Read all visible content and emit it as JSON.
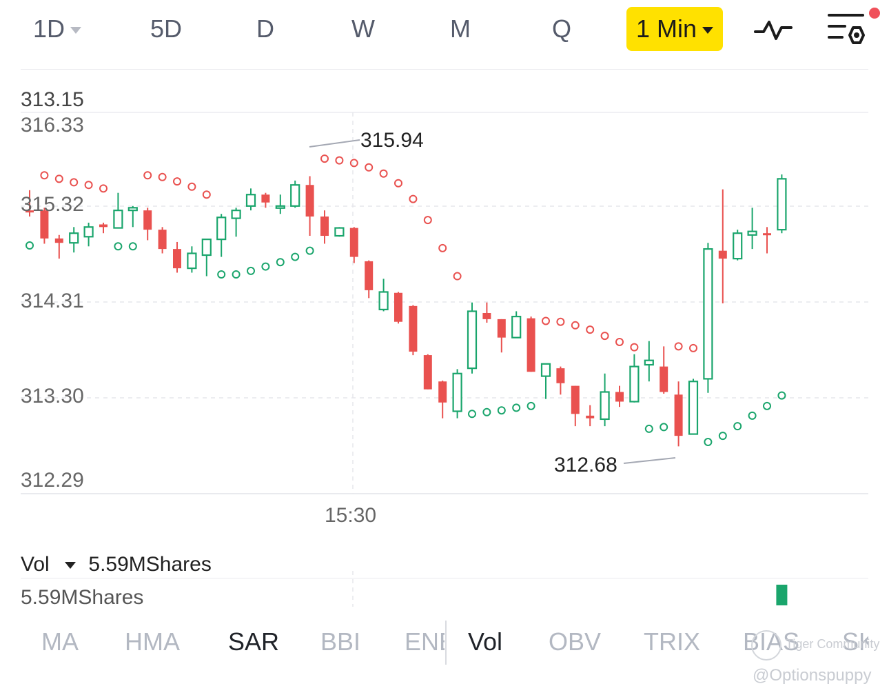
{
  "timeframes": [
    {
      "label": "1D",
      "dropdown": true
    },
    {
      "label": "5D"
    },
    {
      "label": "D"
    },
    {
      "label": "W"
    },
    {
      "label": "M"
    },
    {
      "label": "Q"
    }
  ],
  "interval": {
    "label": "1 Min"
  },
  "price_panel": {
    "top_value": "313.15",
    "axis_labels": [
      "316.33",
      "315.32",
      "314.31",
      "313.30",
      "312.29"
    ],
    "high_marker": "315.94",
    "low_marker": "312.68",
    "time_label": "15:30"
  },
  "volume_panel": {
    "label": "Vol",
    "value": "5.59MShares",
    "axis_label": "5.59MShares"
  },
  "indicator_tabs": [
    "MA",
    "HMA",
    "SAR",
    "BBI",
    "ENE",
    "Vol",
    "OBV",
    "TRIX",
    "BIAS",
    "SK"
  ],
  "selected_tabs": [
    "SAR",
    "Vol"
  ],
  "watermarks": [
    "Tiger Community",
    "@Optionspuppy"
  ],
  "colors": {
    "up": "#1aa56c",
    "down": "#e9514f",
    "accent": "#ffe100",
    "alert": "#f0505a"
  },
  "chart_data": {
    "type": "candlestick",
    "ylim": [
      312.29,
      316.33
    ],
    "x_tick": "15:30",
    "candles": [
      {
        "o": 315.37,
        "h": 315.6,
        "l": 315.3,
        "c": 315.37,
        "dir": "down"
      },
      {
        "o": 315.37,
        "h": 315.4,
        "l": 314.99,
        "c": 315.05,
        "dir": "down"
      },
      {
        "o": 315.05,
        "h": 315.09,
        "l": 314.82,
        "c": 315.0,
        "dir": "down"
      },
      {
        "o": 315.0,
        "h": 315.18,
        "l": 314.89,
        "c": 315.11,
        "dir": "up"
      },
      {
        "o": 315.07,
        "h": 315.23,
        "l": 314.96,
        "c": 315.18,
        "dir": "up"
      },
      {
        "o": 315.21,
        "h": 315.23,
        "l": 315.11,
        "c": 315.18,
        "dir": "down"
      },
      {
        "o": 315.17,
        "h": 315.57,
        "l": 315.17,
        "c": 315.37,
        "dir": "up"
      },
      {
        "o": 315.37,
        "h": 315.42,
        "l": 315.18,
        "c": 315.4,
        "dir": "up"
      },
      {
        "o": 315.37,
        "h": 315.4,
        "l": 315.03,
        "c": 315.15,
        "dir": "down"
      },
      {
        "o": 315.15,
        "h": 315.18,
        "l": 314.88,
        "c": 314.93,
        "dir": "down"
      },
      {
        "o": 314.93,
        "h": 315.01,
        "l": 314.66,
        "c": 314.71,
        "dir": "down"
      },
      {
        "o": 314.71,
        "h": 314.96,
        "l": 314.66,
        "c": 314.88,
        "dir": "up"
      },
      {
        "o": 314.86,
        "h": 315.04,
        "l": 314.62,
        "c": 315.04,
        "dir": "up"
      },
      {
        "o": 315.04,
        "h": 315.33,
        "l": 314.84,
        "c": 315.29,
        "dir": "up"
      },
      {
        "o": 315.28,
        "h": 315.4,
        "l": 315.07,
        "c": 315.37,
        "dir": "up"
      },
      {
        "o": 315.42,
        "h": 315.62,
        "l": 315.37,
        "c": 315.55,
        "dir": "up"
      },
      {
        "o": 315.55,
        "h": 315.57,
        "l": 315.4,
        "c": 315.46,
        "dir": "down"
      },
      {
        "o": 315.42,
        "h": 315.55,
        "l": 315.33,
        "c": 315.4,
        "dir": "up"
      },
      {
        "o": 315.42,
        "h": 315.71,
        "l": 315.4,
        "c": 315.66,
        "dir": "up"
      },
      {
        "o": 315.66,
        "h": 315.76,
        "l": 315.08,
        "c": 315.3,
        "dir": "down"
      },
      {
        "o": 315.3,
        "h": 315.37,
        "l": 314.99,
        "c": 315.08,
        "dir": "down"
      },
      {
        "o": 315.08,
        "h": 315.18,
        "l": 315.07,
        "c": 315.17,
        "dir": "up"
      },
      {
        "o": 315.17,
        "h": 315.18,
        "l": 314.77,
        "c": 314.84,
        "dir": "down"
      },
      {
        "o": 314.79,
        "h": 314.8,
        "l": 314.37,
        "c": 314.46,
        "dir": "down"
      },
      {
        "o": 314.24,
        "h": 314.59,
        "l": 314.22,
        "c": 314.44,
        "dir": "up"
      },
      {
        "o": 314.43,
        "h": 314.44,
        "l": 314.08,
        "c": 314.1,
        "dir": "down"
      },
      {
        "o": 314.28,
        "h": 314.29,
        "l": 313.72,
        "c": 313.76,
        "dir": "down"
      },
      {
        "o": 313.72,
        "h": 313.73,
        "l": 313.33,
        "c": 313.33,
        "dir": "down"
      },
      {
        "o": 313.42,
        "h": 313.43,
        "l": 313.0,
        "c": 313.18,
        "dir": "down"
      },
      {
        "o": 313.08,
        "h": 313.56,
        "l": 313.0,
        "c": 313.51,
        "dir": "up"
      },
      {
        "o": 313.57,
        "h": 314.32,
        "l": 313.51,
        "c": 314.22,
        "dir": "up"
      },
      {
        "o": 314.2,
        "h": 314.32,
        "l": 314.09,
        "c": 314.13,
        "dir": "down"
      },
      {
        "o": 314.13,
        "h": 314.13,
        "l": 313.75,
        "c": 313.92,
        "dir": "down"
      },
      {
        "o": 313.92,
        "h": 314.22,
        "l": 313.92,
        "c": 314.16,
        "dir": "up"
      },
      {
        "o": 314.14,
        "h": 314.16,
        "l": 313.53,
        "c": 313.53,
        "dir": "down"
      },
      {
        "o": 313.48,
        "h": 313.62,
        "l": 313.22,
        "c": 313.62,
        "dir": "up"
      },
      {
        "o": 313.57,
        "h": 313.59,
        "l": 313.27,
        "c": 313.4,
        "dir": "down"
      },
      {
        "o": 313.37,
        "h": 313.37,
        "l": 312.91,
        "c": 313.05,
        "dir": "down"
      },
      {
        "o": 313.03,
        "h": 313.15,
        "l": 312.91,
        "c": 313.0,
        "dir": "down"
      },
      {
        "o": 312.99,
        "h": 313.51,
        "l": 312.91,
        "c": 313.3,
        "dir": "up"
      },
      {
        "o": 313.3,
        "h": 313.37,
        "l": 313.13,
        "c": 313.19,
        "dir": "down"
      },
      {
        "o": 313.19,
        "h": 313.73,
        "l": 313.18,
        "c": 313.59,
        "dir": "up"
      },
      {
        "o": 313.66,
        "h": 313.88,
        "l": 313.42,
        "c": 313.61,
        "dir": "up"
      },
      {
        "o": 313.59,
        "h": 313.82,
        "l": 313.28,
        "c": 313.3,
        "dir": "down"
      },
      {
        "o": 313.27,
        "h": 313.42,
        "l": 312.68,
        "c": 312.8,
        "dir": "down"
      },
      {
        "o": 312.82,
        "h": 313.45,
        "l": 312.82,
        "c": 313.42,
        "dir": "up"
      },
      {
        "o": 313.45,
        "h": 315.0,
        "l": 313.29,
        "c": 314.93,
        "dir": "up"
      },
      {
        "o": 314.91,
        "h": 315.61,
        "l": 314.31,
        "c": 314.82,
        "dir": "down"
      },
      {
        "o": 314.82,
        "h": 315.15,
        "l": 314.8,
        "c": 315.11,
        "dir": "up"
      },
      {
        "o": 315.09,
        "h": 315.4,
        "l": 314.93,
        "c": 315.13,
        "dir": "up"
      },
      {
        "o": 315.11,
        "h": 315.18,
        "l": 314.88,
        "c": 315.11,
        "dir": "down"
      },
      {
        "o": 315.15,
        "h": 315.78,
        "l": 315.11,
        "c": 315.73,
        "dir": "up"
      }
    ],
    "sar": [
      {
        "v": 314.97,
        "dir": "up"
      },
      {
        "v": 315.77,
        "dir": "down"
      },
      {
        "v": 315.73,
        "dir": "down"
      },
      {
        "v": 315.69,
        "dir": "down"
      },
      {
        "v": 315.66,
        "dir": "down"
      },
      {
        "v": 315.62,
        "dir": "down"
      },
      {
        "v": 314.96,
        "dir": "up"
      },
      {
        "v": 314.96,
        "dir": "up"
      },
      {
        "v": 315.77,
        "dir": "down"
      },
      {
        "v": 315.75,
        "dir": "down"
      },
      {
        "v": 315.7,
        "dir": "down"
      },
      {
        "v": 315.64,
        "dir": "down"
      },
      {
        "v": 315.55,
        "dir": "down"
      },
      {
        "v": 314.64,
        "dir": "up"
      },
      {
        "v": 314.64,
        "dir": "up"
      },
      {
        "v": 314.68,
        "dir": "up"
      },
      {
        "v": 314.73,
        "dir": "up"
      },
      {
        "v": 314.78,
        "dir": "up"
      },
      {
        "v": 314.84,
        "dir": "up"
      },
      {
        "v": 314.91,
        "dir": "up"
      },
      {
        "v": 315.96,
        "dir": "down"
      },
      {
        "v": 315.94,
        "dir": "down"
      },
      {
        "v": 315.91,
        "dir": "down"
      },
      {
        "v": 315.86,
        "dir": "down"
      },
      {
        "v": 315.79,
        "dir": "down"
      },
      {
        "v": 315.68,
        "dir": "down"
      },
      {
        "v": 315.5,
        "dir": "down"
      },
      {
        "v": 315.26,
        "dir": "down"
      },
      {
        "v": 314.94,
        "dir": "down"
      },
      {
        "v": 314.62,
        "dir": "down"
      },
      {
        "v": 313.05,
        "dir": "up"
      },
      {
        "v": 313.07,
        "dir": "up"
      },
      {
        "v": 313.09,
        "dir": "up"
      },
      {
        "v": 313.12,
        "dir": "up"
      },
      {
        "v": 313.14,
        "dir": "up"
      },
      {
        "v": 314.11,
        "dir": "down"
      },
      {
        "v": 314.1,
        "dir": "down"
      },
      {
        "v": 314.06,
        "dir": "down"
      },
      {
        "v": 314.01,
        "dir": "down"
      },
      {
        "v": 313.94,
        "dir": "down"
      },
      {
        "v": 313.87,
        "dir": "down"
      },
      {
        "v": 313.81,
        "dir": "down"
      },
      {
        "v": 312.88,
        "dir": "up"
      },
      {
        "v": 312.9,
        "dir": "up"
      },
      {
        "v": 313.82,
        "dir": "down"
      },
      {
        "v": 313.8,
        "dir": "down"
      },
      {
        "v": 312.73,
        "dir": "up"
      },
      {
        "v": 312.8,
        "dir": "up"
      },
      {
        "v": 312.91,
        "dir": "up"
      },
      {
        "v": 313.03,
        "dir": "up"
      },
      {
        "v": 313.14,
        "dir": "up"
      },
      {
        "v": 313.26,
        "dir": "up"
      }
    ],
    "volume": [
      {
        "index": 51,
        "value": 5.59,
        "dir": "up"
      }
    ]
  }
}
